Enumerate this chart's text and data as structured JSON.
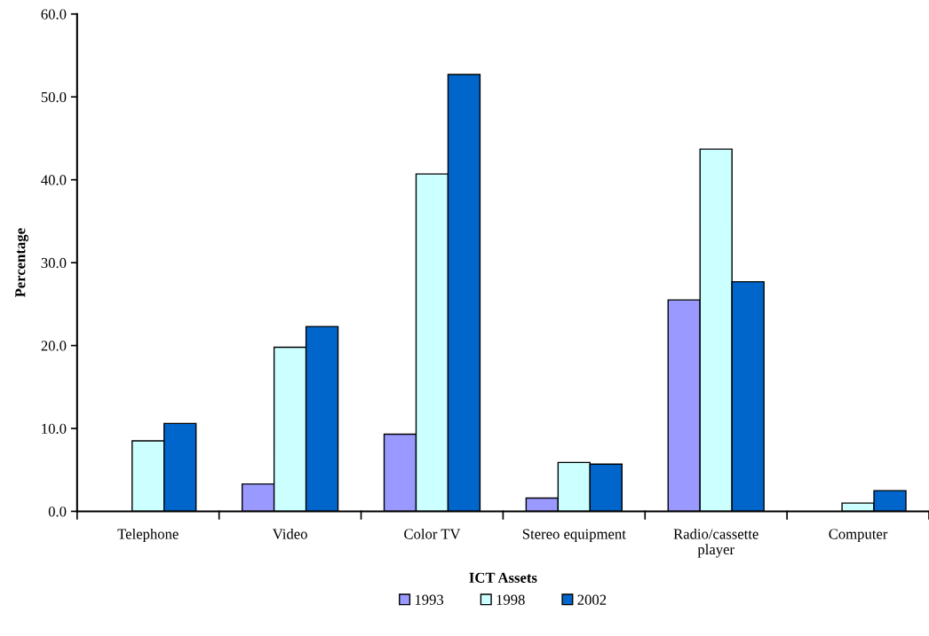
{
  "chart_data": {
    "type": "bar",
    "xlabel": "ICT Assets",
    "ylabel": "Percentage",
    "categories": [
      "Telephone",
      "Video",
      "Color TV",
      "Stereo equipment",
      "Radio/cassette\nplayer",
      "Computer"
    ],
    "series": [
      {
        "name": "1993",
        "color": "#9999ff",
        "values": [
          null,
          3.3,
          9.3,
          1.6,
          25.5,
          null
        ]
      },
      {
        "name": "1998",
        "color": "#ccffff",
        "values": [
          8.5,
          19.8,
          40.7,
          5.9,
          43.7,
          1.0
        ]
      },
      {
        "name": "2002",
        "color": "#0066cc",
        "values": [
          10.6,
          22.3,
          52.7,
          5.7,
          27.7,
          2.5
        ]
      }
    ],
    "ylim": [
      0,
      60
    ],
    "yticks": [
      {
        "value": 0,
        "label": "0.0"
      },
      {
        "value": 10,
        "label": "10.0"
      },
      {
        "value": 20,
        "label": "20.0"
      },
      {
        "value": 30,
        "label": "30.0"
      },
      {
        "value": 40,
        "label": "40.0"
      },
      {
        "value": 50,
        "label": "50.0"
      },
      {
        "value": 60,
        "label": "60.0"
      }
    ],
    "grid": false,
    "legend": "bottom"
  }
}
